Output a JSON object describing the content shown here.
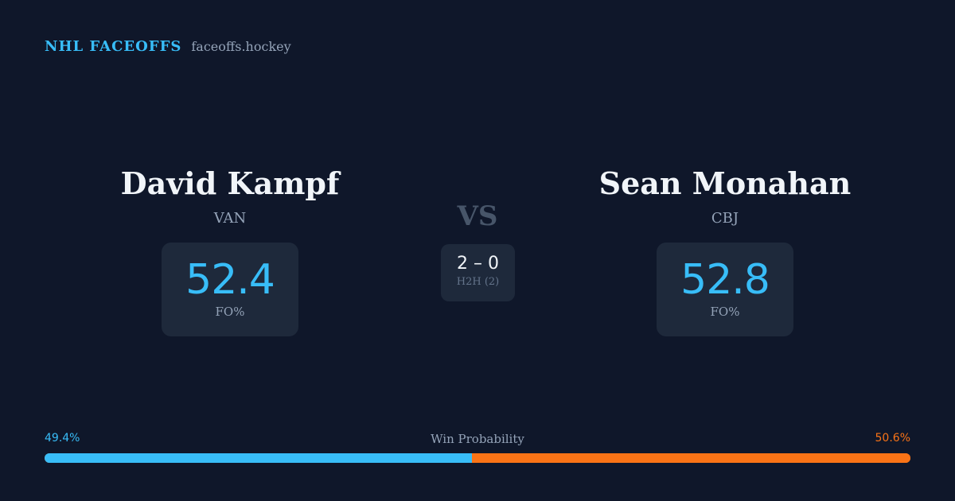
{
  "brand": {
    "title": "NHL FACEOFFS",
    "domain": "faceoffs.hockey",
    "accent": "#38bdf8"
  },
  "matchup": {
    "vs_label": "VS",
    "h2h": {
      "score": "2 – 0",
      "label": "H2H (2)"
    }
  },
  "players": {
    "left": {
      "name": "David Kampf",
      "team": "VAN",
      "fo_pct": "52.4",
      "fo_label": "FO%"
    },
    "right": {
      "name": "Sean Monahan",
      "team": "CBJ",
      "fo_pct": "52.8",
      "fo_label": "FO%"
    }
  },
  "win_probability": {
    "title": "Win Probability",
    "left_label": "49.4%",
    "right_label": "50.6%",
    "left_value": 49.4,
    "right_value": 50.6,
    "left_color": "#38bdf8",
    "right_color": "#f97316"
  }
}
